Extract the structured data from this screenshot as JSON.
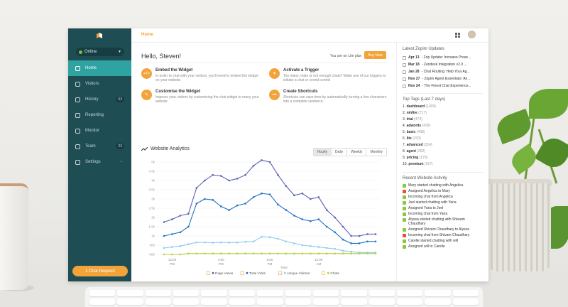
{
  "colors": {
    "sidebar": "#1e4d53",
    "active_nav": "#2fa3a1",
    "accent": "#f2a33a",
    "page_views": "#5b62b4",
    "total_visits": "#1f72c4",
    "unique_visitors": "#8ccdf0",
    "chats": "#b6d33c"
  },
  "sidebar": {
    "status_label": "Online",
    "items": [
      {
        "label": "Home",
        "icon": "home-icon"
      },
      {
        "label": "Visitors",
        "icon": "visitors-icon"
      },
      {
        "label": "History",
        "icon": "history-icon",
        "badge": "63"
      },
      {
        "label": "Reporting",
        "icon": "reporting-icon"
      },
      {
        "label": "Monitor",
        "icon": "monitor-icon"
      },
      {
        "label": "Team",
        "icon": "team-icon",
        "badge": "23"
      },
      {
        "label": "Settings",
        "icon": "gear-icon"
      }
    ],
    "chat_request": "1 Chat Request"
  },
  "topbar": {
    "breadcrumb": "Home"
  },
  "main": {
    "greeting": "Hello, Steven!",
    "plan_text": "You are on Lite plan",
    "buy_label": "Buy Now",
    "tasks": [
      {
        "title": "Embed the Widget",
        "desc": "In order to chat with your visitors, you'll need to embed the widget on your website.",
        "icon": "code-icon",
        "glyph": "</>"
      },
      {
        "title": "Activate a Trigger",
        "desc": "Too many chats or not enough chats? Make use of our triggers to initiate a chat or crowd control",
        "icon": "bulb-icon",
        "glyph": "✦"
      },
      {
        "title": "Customise the Widget",
        "desc": "Impress your visitors by customising the chat widget to many your website",
        "icon": "brush-icon",
        "glyph": "✎"
      },
      {
        "title": "Create Shortcuts",
        "desc": "Shortcuts can save time by automatically turning a few characters into a complete sentence.",
        "icon": "shortcut-icon",
        "glyph": "•••"
      }
    ],
    "analytics_title": "Website Analytics",
    "periods": [
      "Hourly",
      "Daily",
      "Weekly",
      "Monthly"
    ],
    "active_period": "Hourly"
  },
  "chart_data": {
    "type": "line",
    "xlabel": "Time",
    "x_ticks": [
      [
        "12:00",
        "PM"
      ],
      [
        "4:00",
        "PM"
      ],
      [
        "8:00",
        "PM"
      ],
      [
        "12:00",
        "AM"
      ]
    ],
    "y_ticks": [
      "000",
      "500",
      "1k",
      "1.5k",
      "2k",
      "2.5k",
      "3k",
      "3.5k",
      "4k",
      "4.5k",
      "5k"
    ],
    "ylim": [
      0,
      5000
    ],
    "grid": true,
    "legend_position": "bottom",
    "series": [
      {
        "name": "Page Views",
        "color": "#5b62b4",
        "values": [
          1750,
          1900,
          2100,
          2200,
          3600,
          4000,
          4300,
          4250,
          4000,
          4100,
          4300,
          4800,
          5100,
          5000,
          4300,
          3700,
          3200,
          3300,
          3000,
          3100,
          2400,
          2000,
          1500,
          1000,
          1000,
          1100,
          1100
        ]
      },
      {
        "name": "Total Visits",
        "color": "#1f72c4",
        "values": [
          1000,
          1100,
          1200,
          1500,
          2750,
          3000,
          2950,
          2600,
          2400,
          2650,
          2750,
          3100,
          3300,
          3250,
          2700,
          2400,
          2100,
          1900,
          1800,
          1900,
          1500,
          1200,
          800,
          600,
          600,
          700,
          700
        ]
      },
      {
        "name": "Unique Visitors",
        "color": "#8ccdf0",
        "values": [
          350,
          400,
          450,
          550,
          650,
          650,
          630,
          650,
          640,
          650,
          680,
          700,
          950,
          930,
          850,
          700,
          600,
          500,
          450,
          400,
          350,
          300,
          200,
          150,
          100,
          100,
          100
        ]
      },
      {
        "name": "Chats",
        "color": "#b6d33c",
        "values": [
          0,
          0,
          0,
          50,
          50,
          50,
          50,
          50,
          50,
          50,
          50,
          50,
          50,
          50,
          50,
          50,
          50,
          50,
          50,
          50,
          50,
          50,
          50,
          50,
          50,
          50,
          50
        ]
      }
    ]
  },
  "right": {
    "updates_title": "Latest Zopim Updates",
    "updates": [
      {
        "date": "Apr 13",
        "text": "- Zop Update: Increase Proac..."
      },
      {
        "date": "Mar 18",
        "text": "- Zendesk Integration v2.0 ..."
      },
      {
        "date": "Jan 28",
        "text": "- Chat Routing: Help Your Ag..."
      },
      {
        "date": "Nov 27",
        "text": "- Zopim Agent Essentials: An..."
      },
      {
        "date": "Nov 24",
        "text": "- The Finest Chat Experience..."
      }
    ],
    "tags_title": "Top Tags (Last 7 days)",
    "tags": [
      {
        "rank": "1.",
        "name": "dashboard",
        "count": "(1009)"
      },
      {
        "rank": "2.",
        "name": "ninfire",
        "count": "(717)"
      },
      {
        "rank": "3.",
        "name": "trial",
        "count": "(474)"
      },
      {
        "rank": "4.",
        "name": "adwords",
        "count": "(439)"
      },
      {
        "rank": "5.",
        "name": "basic",
        "count": "(438)"
      },
      {
        "rank": "6.",
        "name": "lite",
        "count": "(333)"
      },
      {
        "rank": "7.",
        "name": "advanced",
        "count": "(314)"
      },
      {
        "rank": "8.",
        "name": "agent",
        "count": "(202)"
      },
      {
        "rank": "9.",
        "name": "pricing",
        "count": "(179)"
      },
      {
        "rank": "10.",
        "name": "premium",
        "count": "(157)"
      }
    ],
    "activity_title": "Recent Website Activity",
    "activity": [
      {
        "kind": "chat",
        "color": "#8cc63f",
        "text": "Mary started chatting with Angelica"
      },
      {
        "kind": "assign",
        "color": "#e94e3c",
        "text": "Assigned Angelica to Mary"
      },
      {
        "kind": "chat",
        "color": "#8cc63f",
        "text": "Incoming chat from Angelica"
      },
      {
        "kind": "chat",
        "color": "#8cc63f",
        "text": "Joel started chatting with Yana"
      },
      {
        "kind": "assign",
        "color": "#8cc63f",
        "text": "Assigned Yana to Joel"
      },
      {
        "kind": "chat",
        "color": "#8cc63f",
        "text": "Incoming chat from Yana"
      },
      {
        "kind": "chat",
        "color": "#8cc63f",
        "text": "Alyssa started chatting with Shiwam Chaudhary"
      },
      {
        "kind": "assign",
        "color": "#8cc63f",
        "text": "Assigned Shivam Chaudhary to Alyssa"
      },
      {
        "kind": "assign",
        "color": "#e94e3c",
        "text": "Incoming chat from Shivam Chaudhary"
      },
      {
        "kind": "chat",
        "color": "#8cc63f",
        "text": "Carelle started chatting with will"
      },
      {
        "kind": "assign",
        "color": "#8cc63f",
        "text": "Assigned will to Carelle"
      }
    ]
  }
}
